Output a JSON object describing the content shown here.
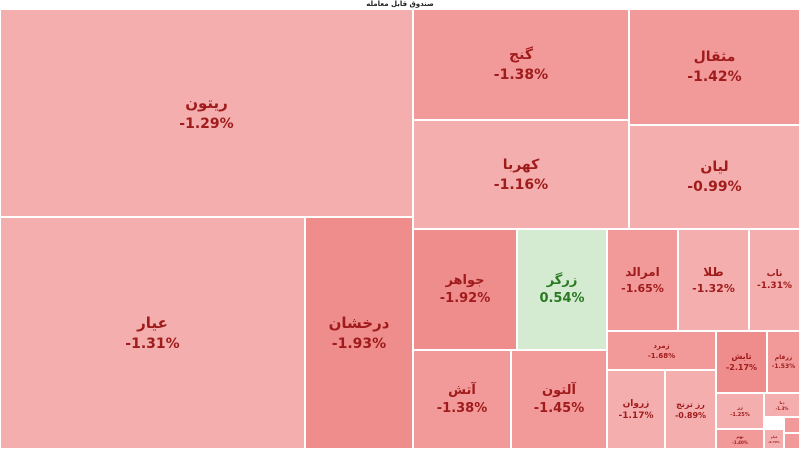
{
  "window": {
    "title": "صندوق قابل معامله"
  },
  "chart_data": {
    "type": "treemap",
    "title": "صندوق قابل معامله",
    "colors": {
      "negative_light": "#f4aeae",
      "negative_mid": "#f29a9a",
      "negative_strong": "#ef8d8d",
      "negative_text": "#a01c1c",
      "positive_fill": "#d4ead1",
      "positive_text": "#2a7a22"
    },
    "tiles": [
      {
        "name": "ریتون",
        "change": "-1.29%",
        "value": -1.29
      },
      {
        "name": "عیار",
        "change": "-1.31%",
        "value": -1.31
      },
      {
        "name": "درخشان",
        "change": "-1.93%",
        "value": -1.93
      },
      {
        "name": "گنج",
        "change": "-1.38%",
        "value": -1.38
      },
      {
        "name": "مثقال",
        "change": "-1.42%",
        "value": -1.42
      },
      {
        "name": "کهربا",
        "change": "-1.16%",
        "value": -1.16
      },
      {
        "name": "لیان",
        "change": "-0.99%",
        "value": -0.99
      },
      {
        "name": "جواهر",
        "change": "-1.92%",
        "value": -1.92
      },
      {
        "name": "زرگر",
        "change": "0.54%",
        "value": 0.54
      },
      {
        "name": "امرالد",
        "change": "-1.65%",
        "value": -1.65
      },
      {
        "name": "طلا",
        "change": "-1.32%",
        "value": -1.32
      },
      {
        "name": "ناب",
        "change": "-1.31%",
        "value": -1.31
      },
      {
        "name": "آتش",
        "change": "-1.38%",
        "value": -1.38
      },
      {
        "name": "آلتون",
        "change": "-1.45%",
        "value": -1.45
      },
      {
        "name": "زمرد",
        "change": "-1.68%",
        "value": -1.68
      },
      {
        "name": "تابش",
        "change": "-2.17%",
        "value": -2.17
      },
      {
        "name": "زرفام",
        "change": "-1.53%",
        "value": -1.53
      },
      {
        "name": "زروان",
        "change": "-1.17%",
        "value": -1.17
      },
      {
        "name": "رز ترنج",
        "change": "-0.89%",
        "value": -0.89
      },
      {
        "name": "زر",
        "change": "-1.25%",
        "value": -1.25
      },
      {
        "name": "دنا",
        "change": "-1.3%",
        "value": -1.3
      },
      {
        "name": "نهم",
        "change": "-1.40%",
        "value": -1.4
      },
      {
        "name": "قیام",
        "change": "-0.79%",
        "value": -0.79
      },
      {
        "name": "",
        "change": "",
        "value": null
      },
      {
        "name": "",
        "change": "",
        "value": null
      }
    ]
  }
}
